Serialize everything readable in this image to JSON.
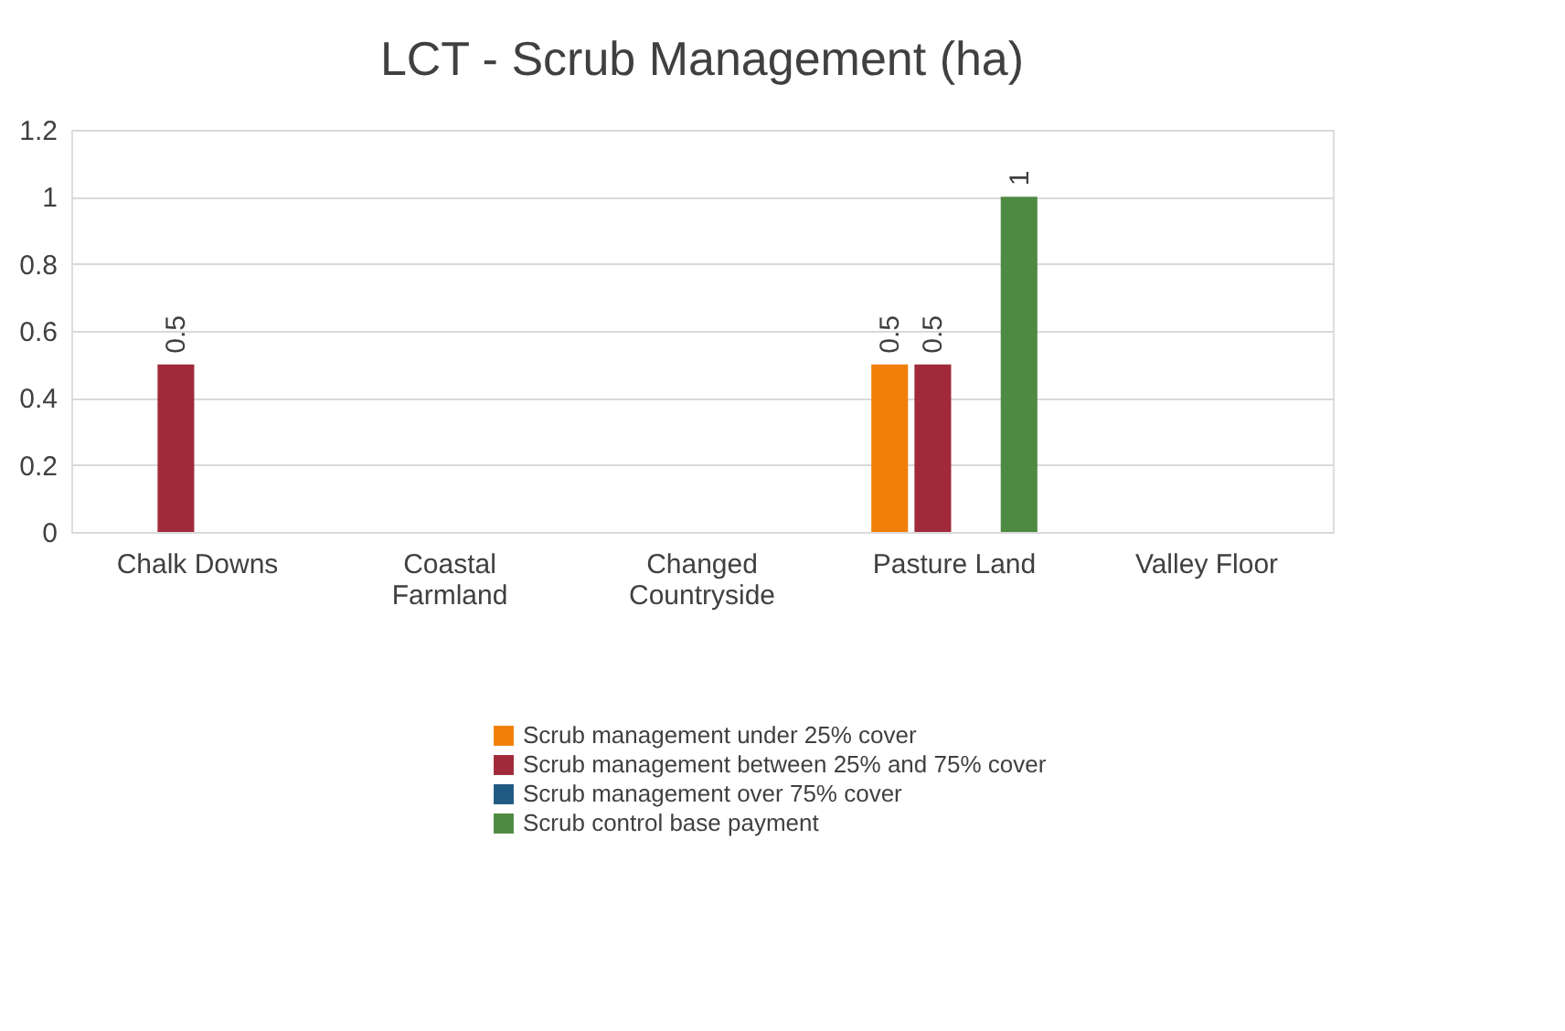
{
  "chart_data": {
    "type": "bar",
    "title": "LCT - Scrub Management (ha)",
    "categories": [
      "Chalk Downs",
      "Coastal Farmland",
      "Changed Countryside",
      "Pasture Land",
      "Valley Floor"
    ],
    "series": [
      {
        "name": "Scrub management under 25% cover",
        "color": "#f07f0a",
        "values": [
          null,
          null,
          null,
          0.5,
          null
        ]
      },
      {
        "name": "Scrub management between 25% and 75% cover",
        "color": "#a12a3a",
        "values": [
          0.5,
          null,
          null,
          0.5,
          null
        ]
      },
      {
        "name": "Scrub management over 75% cover",
        "color": "#1f5a82",
        "values": [
          null,
          null,
          null,
          null,
          null
        ]
      },
      {
        "name": "Scrub control base payment",
        "color": "#4f8a43",
        "values": [
          null,
          null,
          null,
          1,
          null
        ]
      }
    ],
    "ylim": [
      0,
      1.2
    ],
    "yticks": [
      0,
      0.2,
      0.4,
      0.6,
      0.8,
      1,
      1.2
    ],
    "grid": "y",
    "legend": "bottom",
    "data_labels": true
  }
}
